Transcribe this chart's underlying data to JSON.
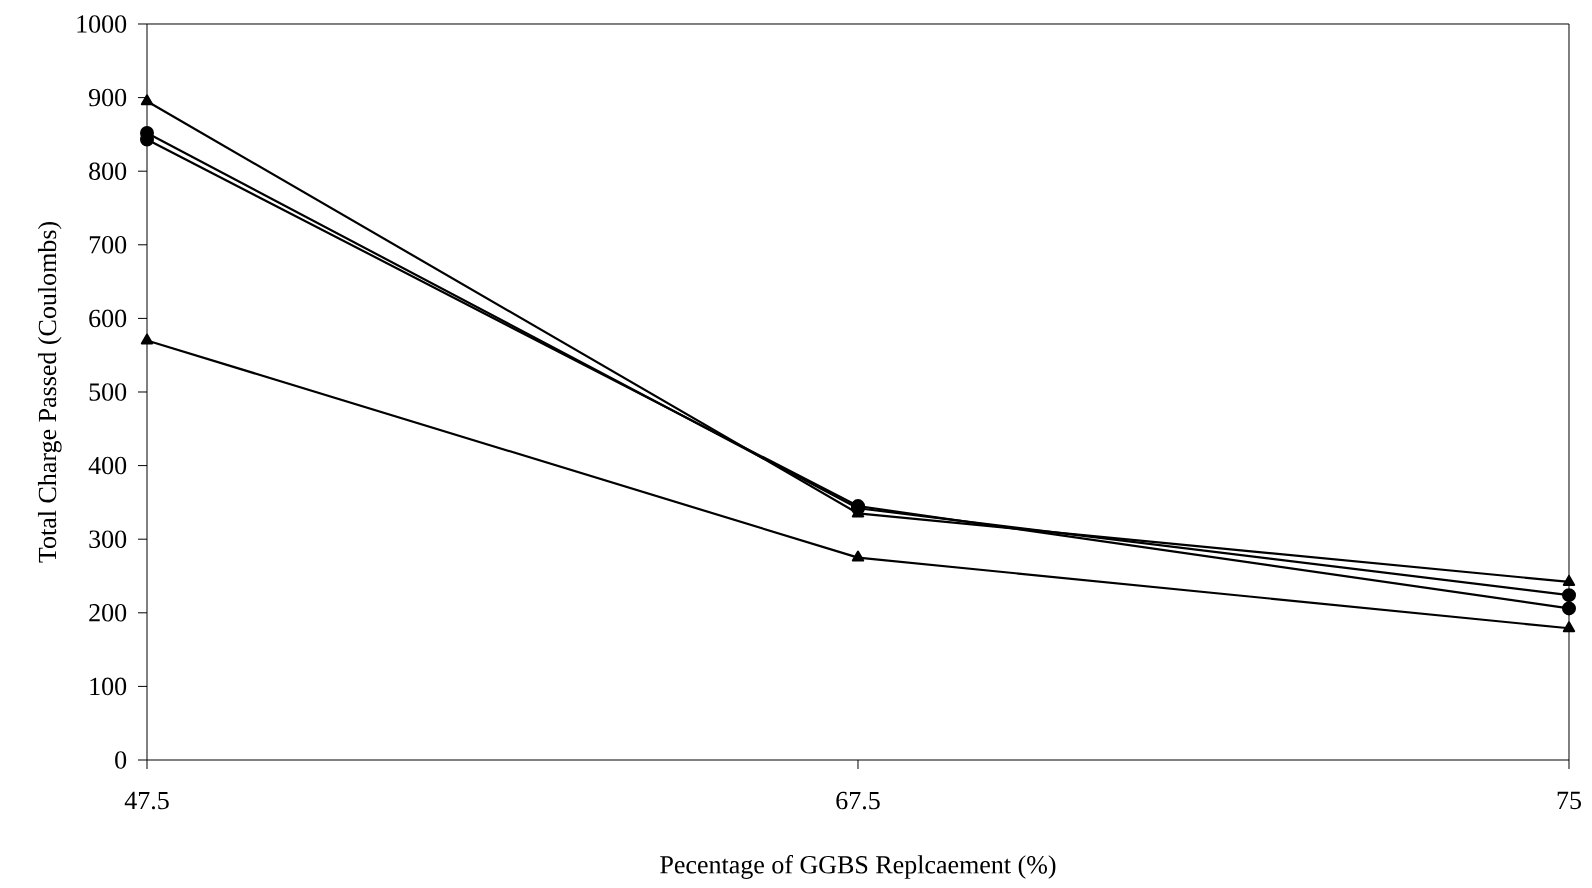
{
  "chart_data": {
    "type": "line",
    "xlabel": "Pecentage of GGBS Replcaement (%)",
    "ylabel": "Total Charge Passed (Coulombs)",
    "categories": [
      "47.5",
      "67.5",
      "75"
    ],
    "series": [
      {
        "color": "#000000",
        "marker": "triangle",
        "values": [
          895,
          335,
          242
        ]
      },
      {
        "color": "#000000",
        "marker": "circle",
        "values": [
          852,
          342,
          224
        ]
      },
      {
        "color": "#000000",
        "marker": "circle",
        "values": [
          843,
          345,
          206
        ]
      },
      {
        "color": "#000000",
        "marker": "triangle",
        "values": [
          570,
          275,
          179
        ]
      }
    ],
    "ylim": [
      0,
      1000
    ],
    "yticks": [
      0,
      100,
      200,
      300,
      400,
      500,
      600,
      700,
      800,
      900,
      1000
    ],
    "grid": false,
    "legend": false,
    "line_style": "solid"
  }
}
